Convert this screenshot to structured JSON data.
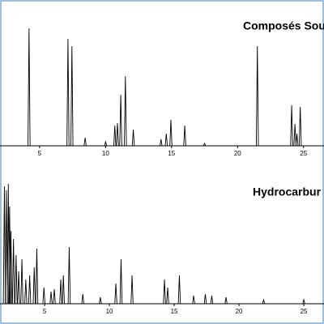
{
  "chart_data": [
    {
      "type": "peaks",
      "title": "Composés Sou",
      "color": "#000000",
      "x": [
        4.2,
        7.15,
        7.45,
        8.45,
        10.0,
        10.7,
        10.9,
        11.15,
        11.5,
        12.1,
        14.2,
        14.6,
        14.95,
        16.0,
        17.5,
        21.5,
        24.1,
        24.35,
        24.5,
        24.75
      ],
      "values": [
        145,
        132,
        123,
        10,
        5,
        25,
        28,
        63,
        86,
        20,
        8,
        15,
        32,
        25,
        3,
        123,
        50,
        27,
        15,
        48
      ],
      "xlim": [
        2,
        26.55
      ],
      "xticks": [
        5,
        10,
        15,
        20,
        25
      ],
      "ylim": [
        0,
        160
      ]
    },
    {
      "type": "peaks",
      "title": "Hydrocarbur",
      "color": "#000000",
      "x": [
        1.9,
        2.05,
        2.2,
        2.3,
        2.4,
        2.6,
        2.8,
        3.0,
        3.25,
        3.55,
        3.85,
        4.2,
        4.4,
        4.95,
        5.5,
        5.75,
        6.25,
        6.45,
        6.9,
        7.95,
        9.3,
        10.5,
        10.9,
        11.75,
        14.25,
        14.5,
        15.4,
        16.5,
        17.4,
        17.9,
        19.0,
        21.9,
        25.0
      ],
      "values": [
        145,
        140,
        148,
        120,
        90,
        80,
        60,
        40,
        55,
        30,
        35,
        45,
        68,
        20,
        15,
        18,
        30,
        35,
        70,
        12,
        8,
        25,
        55,
        35,
        30,
        20,
        35,
        10,
        12,
        10,
        8,
        5,
        5
      ],
      "xlim": [
        1.56,
        26.56
      ],
      "xticks": [
        5,
        10,
        15,
        20,
        25
      ],
      "ylim": [
        0,
        160
      ]
    }
  ]
}
